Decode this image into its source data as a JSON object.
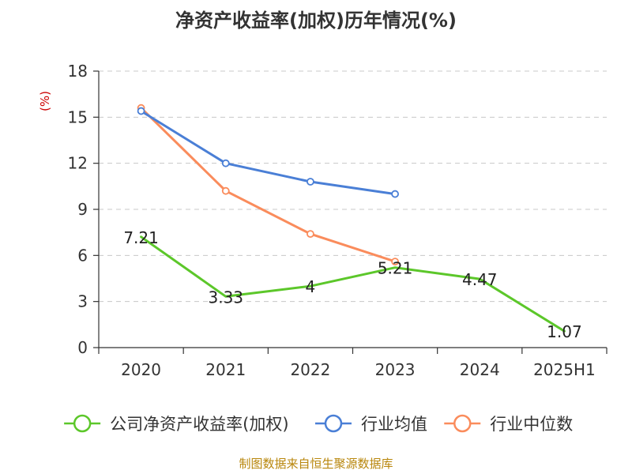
{
  "chart_data": {
    "type": "line",
    "title": "净资产收益率(加权)历年情况(%)",
    "ylabel": "(%)",
    "xlabel": "",
    "categories": [
      "2020",
      "2021",
      "2022",
      "2023",
      "2024",
      "2025H1"
    ],
    "ylim": [
      0,
      18
    ],
    "yticks": [
      0,
      3,
      6,
      9,
      12,
      15,
      18
    ],
    "grid": true,
    "legend_position": "bottom",
    "series": [
      {
        "name": "公司净资产收益率(加权)",
        "color": "#5cc72a",
        "values": [
          7.21,
          3.33,
          4,
          5.21,
          4.47,
          1.07
        ],
        "labels": [
          "7.21",
          "3.33",
          "4",
          "5.21",
          "4.47",
          "1.07"
        ],
        "show_markers": false
      },
      {
        "name": "行业均值",
        "color": "#4a7fd6",
        "values": [
          15.4,
          12.0,
          10.8,
          10.0,
          null,
          null
        ],
        "show_markers": true
      },
      {
        "name": "行业中位数",
        "color": "#fa8c5c",
        "values": [
          15.6,
          10.2,
          7.4,
          5.6,
          null,
          null
        ],
        "show_markers": true
      }
    ],
    "source": "制图数据来自恒生聚源数据库"
  }
}
